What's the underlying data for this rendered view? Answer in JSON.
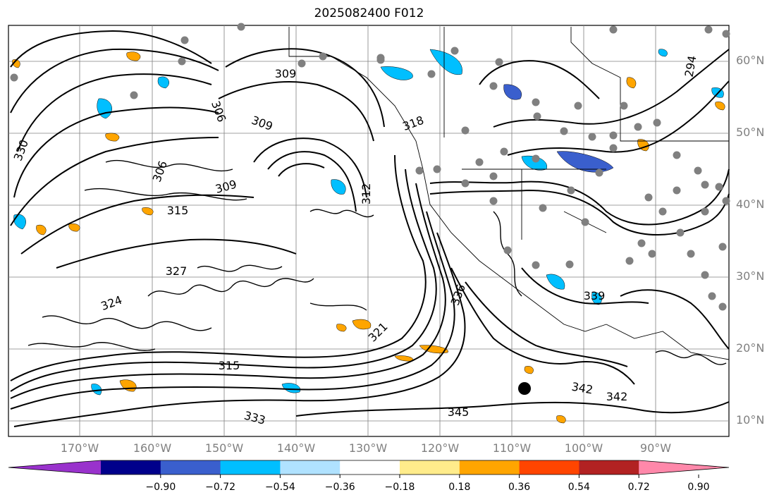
{
  "title": "2025082400 F012",
  "lat_labels": [
    "60°N",
    "50°N",
    "40°N",
    "30°N",
    "20°N",
    "10°N"
  ],
  "lon_labels": [
    "170°W",
    "160°W",
    "150°W",
    "140°W",
    "130°W",
    "120°W",
    "110°W",
    "100°W",
    "90°W"
  ],
  "contour_labels": [
    "309",
    "306",
    "312",
    "315",
    "327",
    "324",
    "330",
    "333",
    "336",
    "339",
    "342",
    "345",
    "318",
    "321",
    "294"
  ],
  "colorbar": {
    "ticks": [
      "−0.90",
      "−0.72",
      "−0.54",
      "−0.36",
      "−0.18",
      "0.18",
      "0.36",
      "0.54",
      "0.72",
      "0.90"
    ],
    "colors": [
      "#9932cc",
      "#00008b",
      "#3a5fcd",
      "#00bfff",
      "#b0e2ff",
      "#ffffff",
      "#ffec8b",
      "#ffa500",
      "#ff4500",
      "#b22222",
      "#ff88aa"
    ]
  },
  "colors": {
    "contour": "#000000",
    "grid": "#808080",
    "positive": "#ffa500",
    "negative": "#00bfff",
    "dots": "#808080"
  }
}
